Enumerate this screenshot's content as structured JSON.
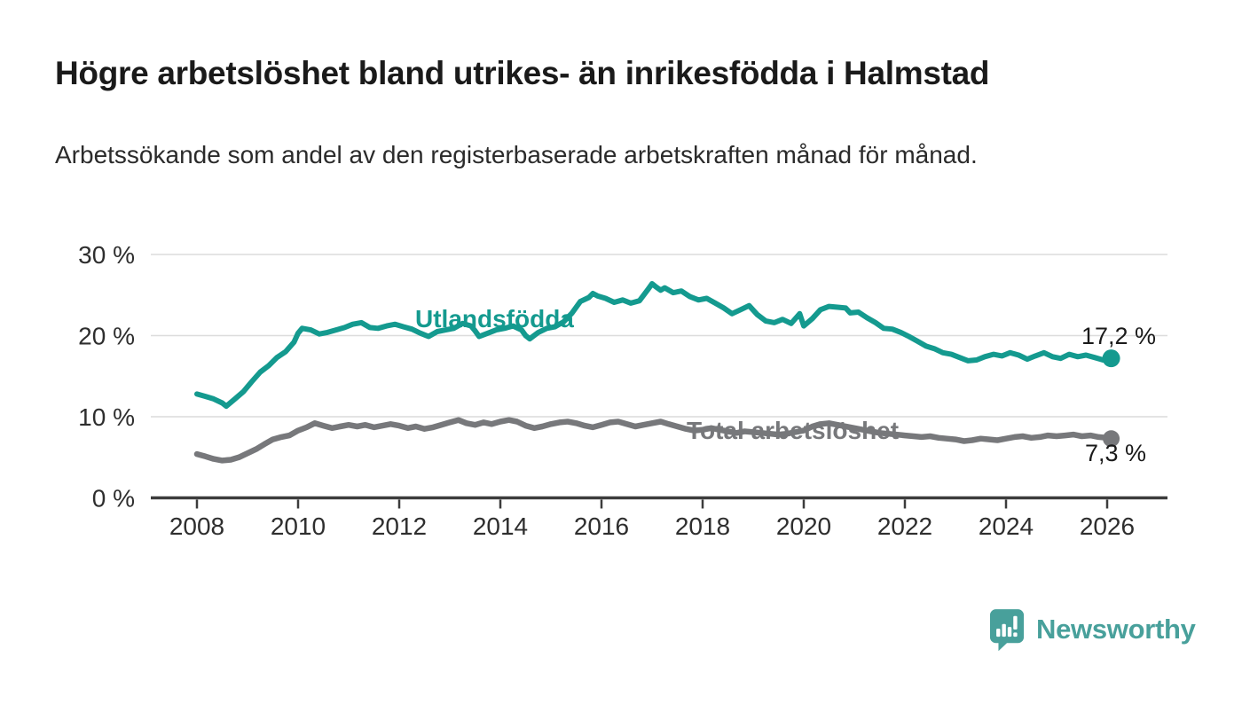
{
  "header": {
    "title": "Högre arbetslöshet bland utrikes- än inrikesfödda i Halmstad",
    "subtitle": "Arbetssökande som andel av den registerbaserade arbetskraften månad för månad."
  },
  "chart_data": {
    "type": "line",
    "title": "Högre arbetslöshet bland utrikes- än inrikesfödda i Halmstad",
    "subtitle": "Arbetssökande som andel av den registerbaserade arbetskraften månad för månad.",
    "xlabel": "",
    "ylabel": "",
    "unit": "%",
    "ylim": [
      0,
      30
    ],
    "x_range": [
      2008.0,
      2026.17
    ],
    "grid": "horizontal",
    "legend_position": "inline-labels",
    "y_ticks": [
      {
        "value": 0,
        "label": "0 %"
      },
      {
        "value": 10,
        "label": "10 %"
      },
      {
        "value": 20,
        "label": "20 %"
      },
      {
        "value": 30,
        "label": "30 %"
      }
    ],
    "x_ticks": [
      {
        "value": 2008,
        "label": "2008"
      },
      {
        "value": 2010,
        "label": "2010"
      },
      {
        "value": 2012,
        "label": "2012"
      },
      {
        "value": 2014,
        "label": "2014"
      },
      {
        "value": 2016,
        "label": "2016"
      },
      {
        "value": 2018,
        "label": "2018"
      },
      {
        "value": 2020,
        "label": "2020"
      },
      {
        "value": 2022,
        "label": "2022"
      },
      {
        "value": 2024,
        "label": "2024"
      },
      {
        "value": 2026,
        "label": "2026"
      }
    ],
    "series": [
      {
        "name": "Utlandsfödda",
        "color": "#149a8f",
        "end_value": 17.2,
        "end_label": "17,2 %",
        "points": [
          [
            2008.0,
            12.8
          ],
          [
            2008.17,
            12.5
          ],
          [
            2008.33,
            12.2
          ],
          [
            2008.5,
            11.7
          ],
          [
            2008.58,
            11.3
          ],
          [
            2008.75,
            12.2
          ],
          [
            2008.92,
            13.1
          ],
          [
            2009.08,
            14.3
          ],
          [
            2009.25,
            15.5
          ],
          [
            2009.42,
            16.3
          ],
          [
            2009.58,
            17.3
          ],
          [
            2009.75,
            18.0
          ],
          [
            2009.92,
            19.2
          ],
          [
            2010.0,
            20.3
          ],
          [
            2010.08,
            20.9
          ],
          [
            2010.25,
            20.7
          ],
          [
            2010.42,
            20.2
          ],
          [
            2010.58,
            20.4
          ],
          [
            2010.75,
            20.7
          ],
          [
            2010.92,
            21.0
          ],
          [
            2011.08,
            21.4
          ],
          [
            2011.25,
            21.6
          ],
          [
            2011.42,
            21.0
          ],
          [
            2011.58,
            20.9
          ],
          [
            2011.75,
            21.2
          ],
          [
            2011.92,
            21.4
          ],
          [
            2012.08,
            21.1
          ],
          [
            2012.25,
            20.8
          ],
          [
            2012.42,
            20.3
          ],
          [
            2012.58,
            19.9
          ],
          [
            2012.75,
            20.5
          ],
          [
            2012.92,
            20.7
          ],
          [
            2013.08,
            20.9
          ],
          [
            2013.25,
            21.5
          ],
          [
            2013.42,
            21.2
          ],
          [
            2013.5,
            20.6
          ],
          [
            2013.58,
            19.9
          ],
          [
            2013.75,
            20.3
          ],
          [
            2013.92,
            20.7
          ],
          [
            2014.08,
            20.9
          ],
          [
            2014.25,
            21.2
          ],
          [
            2014.42,
            20.7
          ],
          [
            2014.5,
            20.0
          ],
          [
            2014.58,
            19.6
          ],
          [
            2014.75,
            20.4
          ],
          [
            2014.92,
            20.9
          ],
          [
            2015.08,
            21.1
          ],
          [
            2015.25,
            21.7
          ],
          [
            2015.42,
            22.8
          ],
          [
            2015.58,
            24.2
          ],
          [
            2015.75,
            24.7
          ],
          [
            2015.83,
            25.2
          ],
          [
            2015.92,
            24.9
          ],
          [
            2016.08,
            24.6
          ],
          [
            2016.25,
            24.1
          ],
          [
            2016.42,
            24.4
          ],
          [
            2016.58,
            24.0
          ],
          [
            2016.75,
            24.3
          ],
          [
            2016.92,
            25.7
          ],
          [
            2017.0,
            26.4
          ],
          [
            2017.08,
            26.0
          ],
          [
            2017.17,
            25.6
          ],
          [
            2017.25,
            25.9
          ],
          [
            2017.42,
            25.3
          ],
          [
            2017.58,
            25.5
          ],
          [
            2017.75,
            24.8
          ],
          [
            2017.92,
            24.4
          ],
          [
            2018.08,
            24.6
          ],
          [
            2018.25,
            24.0
          ],
          [
            2018.42,
            23.4
          ],
          [
            2018.58,
            22.7
          ],
          [
            2018.75,
            23.2
          ],
          [
            2018.92,
            23.7
          ],
          [
            2019.08,
            22.6
          ],
          [
            2019.25,
            21.8
          ],
          [
            2019.42,
            21.6
          ],
          [
            2019.58,
            22.0
          ],
          [
            2019.75,
            21.5
          ],
          [
            2019.92,
            22.7
          ],
          [
            2020.0,
            21.2
          ],
          [
            2020.17,
            22.1
          ],
          [
            2020.33,
            23.2
          ],
          [
            2020.5,
            23.6
          ],
          [
            2020.67,
            23.5
          ],
          [
            2020.83,
            23.4
          ],
          [
            2020.92,
            22.8
          ],
          [
            2021.08,
            22.9
          ],
          [
            2021.25,
            22.2
          ],
          [
            2021.42,
            21.6
          ],
          [
            2021.58,
            20.9
          ],
          [
            2021.75,
            20.8
          ],
          [
            2021.92,
            20.4
          ],
          [
            2022.08,
            19.9
          ],
          [
            2022.25,
            19.3
          ],
          [
            2022.42,
            18.7
          ],
          [
            2022.58,
            18.4
          ],
          [
            2022.75,
            17.9
          ],
          [
            2022.92,
            17.7
          ],
          [
            2023.08,
            17.3
          ],
          [
            2023.25,
            16.9
          ],
          [
            2023.42,
            17.0
          ],
          [
            2023.58,
            17.4
          ],
          [
            2023.75,
            17.7
          ],
          [
            2023.92,
            17.5
          ],
          [
            2024.08,
            17.9
          ],
          [
            2024.25,
            17.6
          ],
          [
            2024.42,
            17.1
          ],
          [
            2024.58,
            17.5
          ],
          [
            2024.75,
            17.9
          ],
          [
            2024.92,
            17.4
          ],
          [
            2025.08,
            17.2
          ],
          [
            2025.25,
            17.7
          ],
          [
            2025.42,
            17.4
          ],
          [
            2025.58,
            17.6
          ],
          [
            2025.75,
            17.3
          ],
          [
            2025.92,
            17.0
          ],
          [
            2026.08,
            17.2
          ]
        ]
      },
      {
        "name": "Total arbetslöshet",
        "color": "#77787b",
        "end_value": 7.3,
        "end_label": "7,3 %",
        "points": [
          [
            2008.0,
            5.4
          ],
          [
            2008.17,
            5.1
          ],
          [
            2008.33,
            4.8
          ],
          [
            2008.5,
            4.6
          ],
          [
            2008.67,
            4.7
          ],
          [
            2008.83,
            5.0
          ],
          [
            2009.0,
            5.5
          ],
          [
            2009.17,
            6.0
          ],
          [
            2009.33,
            6.6
          ],
          [
            2009.5,
            7.2
          ],
          [
            2009.67,
            7.5
          ],
          [
            2009.83,
            7.7
          ],
          [
            2010.0,
            8.3
          ],
          [
            2010.17,
            8.7
          ],
          [
            2010.33,
            9.2
          ],
          [
            2010.5,
            8.9
          ],
          [
            2010.67,
            8.6
          ],
          [
            2010.83,
            8.8
          ],
          [
            2011.0,
            9.0
          ],
          [
            2011.17,
            8.8
          ],
          [
            2011.33,
            9.0
          ],
          [
            2011.5,
            8.7
          ],
          [
            2011.67,
            8.9
          ],
          [
            2011.83,
            9.1
          ],
          [
            2012.0,
            8.9
          ],
          [
            2012.17,
            8.6
          ],
          [
            2012.33,
            8.8
          ],
          [
            2012.5,
            8.5
          ],
          [
            2012.67,
            8.7
          ],
          [
            2012.83,
            9.0
          ],
          [
            2013.0,
            9.3
          ],
          [
            2013.17,
            9.6
          ],
          [
            2013.33,
            9.2
          ],
          [
            2013.5,
            9.0
          ],
          [
            2013.67,
            9.3
          ],
          [
            2013.83,
            9.1
          ],
          [
            2014.0,
            9.4
          ],
          [
            2014.17,
            9.6
          ],
          [
            2014.33,
            9.4
          ],
          [
            2014.5,
            8.9
          ],
          [
            2014.67,
            8.6
          ],
          [
            2014.83,
            8.8
          ],
          [
            2015.0,
            9.1
          ],
          [
            2015.17,
            9.3
          ],
          [
            2015.33,
            9.4
          ],
          [
            2015.5,
            9.2
          ],
          [
            2015.67,
            8.9
          ],
          [
            2015.83,
            8.7
          ],
          [
            2016.0,
            9.0
          ],
          [
            2016.17,
            9.3
          ],
          [
            2016.33,
            9.4
          ],
          [
            2016.5,
            9.1
          ],
          [
            2016.67,
            8.8
          ],
          [
            2016.83,
            9.0
          ],
          [
            2017.0,
            9.2
          ],
          [
            2017.17,
            9.4
          ],
          [
            2017.33,
            9.1
          ],
          [
            2017.5,
            8.8
          ],
          [
            2017.67,
            8.5
          ],
          [
            2017.83,
            8.3
          ],
          [
            2018.0,
            8.4
          ],
          [
            2018.17,
            8.6
          ],
          [
            2018.33,
            8.4
          ],
          [
            2018.5,
            8.2
          ],
          [
            2018.67,
            8.0
          ],
          [
            2018.83,
            8.2
          ],
          [
            2019.0,
            8.1
          ],
          [
            2019.17,
            8.0
          ],
          [
            2019.33,
            7.9
          ],
          [
            2019.5,
            7.8
          ],
          [
            2019.67,
            7.9
          ],
          [
            2019.83,
            8.1
          ],
          [
            2020.0,
            8.3
          ],
          [
            2020.17,
            8.8
          ],
          [
            2020.33,
            9.1
          ],
          [
            2020.5,
            9.2
          ],
          [
            2020.67,
            9.0
          ],
          [
            2020.83,
            8.8
          ],
          [
            2021.0,
            8.6
          ],
          [
            2021.17,
            8.4
          ],
          [
            2021.33,
            8.2
          ],
          [
            2021.5,
            8.0
          ],
          [
            2021.67,
            7.9
          ],
          [
            2021.83,
            7.8
          ],
          [
            2022.0,
            7.7
          ],
          [
            2022.17,
            7.6
          ],
          [
            2022.33,
            7.5
          ],
          [
            2022.5,
            7.6
          ],
          [
            2022.67,
            7.4
          ],
          [
            2022.83,
            7.3
          ],
          [
            2023.0,
            7.2
          ],
          [
            2023.17,
            7.0
          ],
          [
            2023.33,
            7.1
          ],
          [
            2023.5,
            7.3
          ],
          [
            2023.67,
            7.2
          ],
          [
            2023.83,
            7.1
          ],
          [
            2024.0,
            7.3
          ],
          [
            2024.17,
            7.5
          ],
          [
            2024.33,
            7.6
          ],
          [
            2024.5,
            7.4
          ],
          [
            2024.67,
            7.5
          ],
          [
            2024.83,
            7.7
          ],
          [
            2025.0,
            7.6
          ],
          [
            2025.17,
            7.7
          ],
          [
            2025.33,
            7.8
          ],
          [
            2025.5,
            7.6
          ],
          [
            2025.67,
            7.7
          ],
          [
            2025.83,
            7.5
          ],
          [
            2026.0,
            7.4
          ],
          [
            2026.08,
            7.3
          ]
        ]
      }
    ],
    "colors": {
      "utlandsfodda": "#149a8f",
      "total": "#77787b",
      "gridline": "#dcdcdc",
      "axis": "#3c3c3c",
      "brand_teal": "#48a09b"
    }
  },
  "footer": {
    "brand": "Newsworthy"
  }
}
